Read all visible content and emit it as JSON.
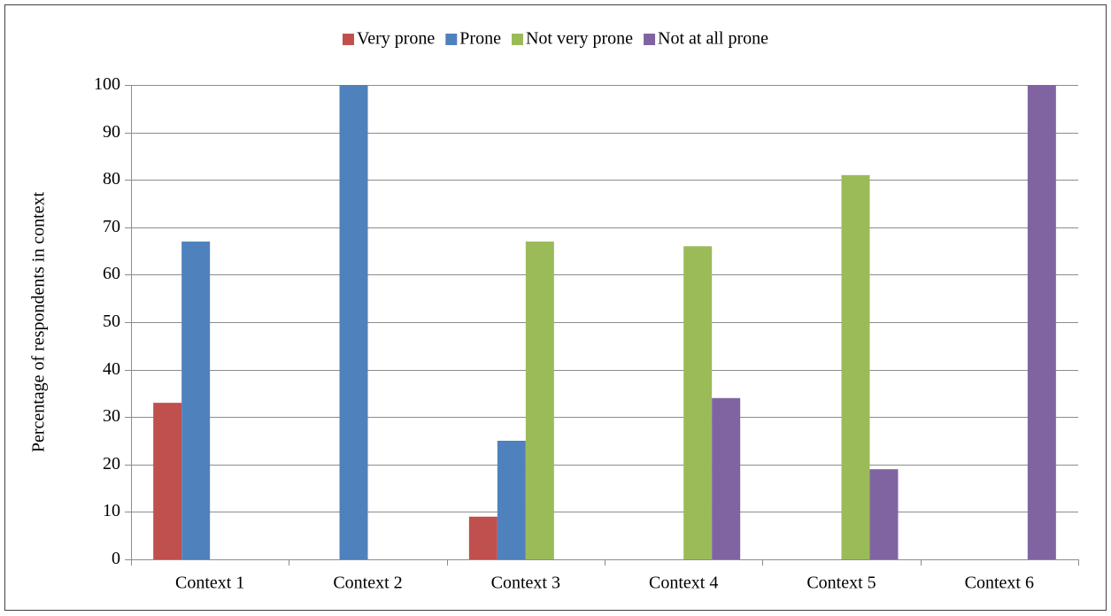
{
  "chart_data": {
    "type": "bar",
    "y_label": "Percentage of respondents in context",
    "categories": [
      "Context 1",
      "Context 2",
      "Context 3",
      "Context 4",
      "Context 5",
      "Context 6"
    ],
    "series": [
      {
        "name": "Very prone",
        "color": "#c0504d",
        "values": [
          33,
          0,
          9,
          0,
          0,
          0
        ]
      },
      {
        "name": "Prone",
        "color": "#4f81bd",
        "values": [
          67,
          100,
          25,
          0,
          0,
          0
        ]
      },
      {
        "name": "Not very prone",
        "color": "#9bbb59",
        "values": [
          0,
          0,
          67,
          66,
          81,
          0
        ]
      },
      {
        "name": "Not at all prone",
        "color": "#8064a2",
        "values": [
          0,
          0,
          0,
          34,
          19,
          100
        ]
      }
    ],
    "ylim": [
      0,
      100
    ],
    "yticks": [
      0,
      10,
      20,
      30,
      40,
      50,
      60,
      70,
      80,
      90,
      100
    ],
    "grid": true,
    "legend": "top"
  }
}
